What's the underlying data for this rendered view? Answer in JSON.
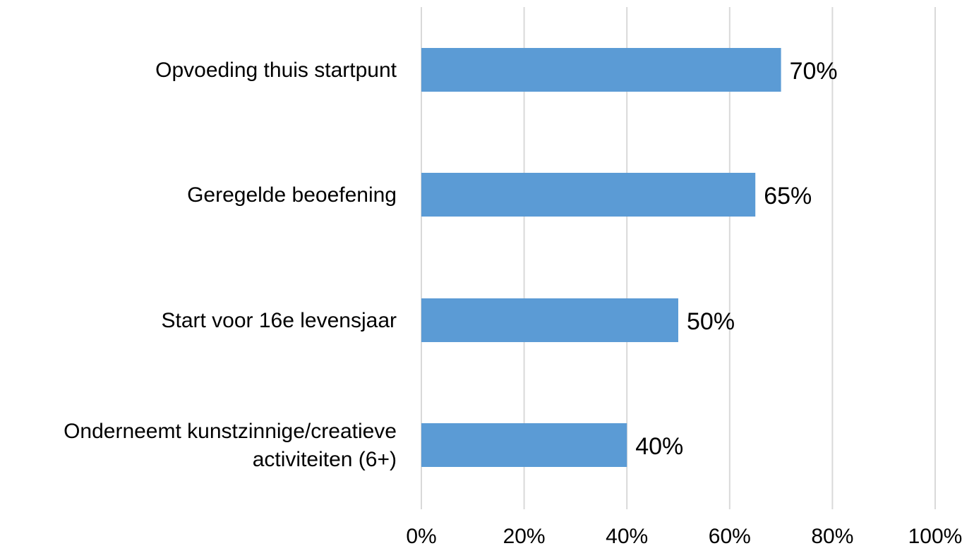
{
  "chart_data": {
    "type": "bar",
    "orientation": "horizontal",
    "title": "",
    "xlabel": "",
    "ylabel": "",
    "categories": [
      [
        "Opvoeding thuis startpunt"
      ],
      [
        "Geregelde beoefening"
      ],
      [
        "Start voor 16e  levensjaar"
      ],
      [
        "Onderneemt kunstzinnige/creatieve",
        "activiteiten (6+)"
      ]
    ],
    "values": [
      70,
      65,
      50,
      40
    ],
    "value_labels": [
      "70%",
      "65%",
      "50%",
      "40%"
    ],
    "xlim": [
      0,
      100
    ],
    "x_ticks": [
      0,
      20,
      40,
      60,
      80,
      100
    ],
    "x_tick_labels": [
      "0%",
      "20%",
      "40%",
      "60%",
      "80%",
      "100%"
    ],
    "grid": true,
    "legend": "none",
    "colors": {
      "bar": "#5b9bd5",
      "grid": "#d9d9d9",
      "text": "#000000"
    }
  }
}
